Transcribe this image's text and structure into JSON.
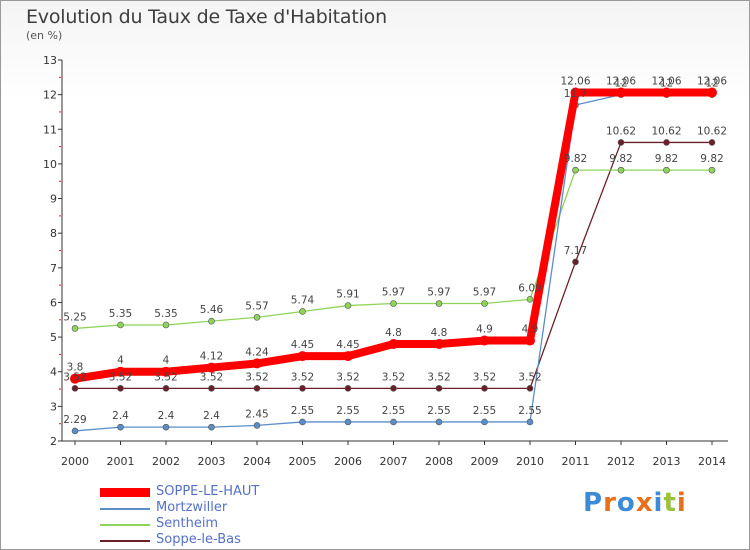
{
  "title": "Evolution du Taux de Taxe d'Habitation",
  "subtitle": "(en %)",
  "logo": {
    "text": "Proxiti",
    "colors": [
      "#3d8bd6",
      "#e8701a",
      "#3d8bd6",
      "#e8701a",
      "#3d8bd6",
      "#9ac23c",
      "#e8701a"
    ]
  },
  "chart_data": {
    "type": "line",
    "title": "Evolution du Taux de Taxe d'Habitation",
    "ylabel": "(en %)",
    "xlabel": "",
    "x": [
      "2000",
      "2001",
      "2002",
      "2003",
      "2004",
      "2005",
      "2006",
      "2007",
      "2008",
      "2009",
      "2010",
      "2011",
      "2012",
      "2013",
      "2014"
    ],
    "ylim": [
      2,
      13
    ],
    "yticks": [
      2,
      3,
      4,
      5,
      6,
      7,
      8,
      9,
      10,
      11,
      12,
      13
    ],
    "grid": false,
    "legend_position": "bottom-left",
    "series": [
      {
        "name": "SOPPE-LE-HAUT",
        "color": "#ff0000",
        "values": [
          3.8,
          4,
          4,
          4.12,
          4.24,
          4.45,
          4.45,
          4.8,
          4.8,
          4.9,
          4.9,
          12.06,
          12.06,
          12.06,
          12.06
        ],
        "labels": [
          "3.8",
          "4",
          "4",
          "4.12",
          "4.24",
          "4.45",
          "4.45",
          "4.8",
          "4.8",
          "4.9",
          "4.9",
          "12.06",
          "12.06",
          "12.06",
          "12.06"
        ]
      },
      {
        "name": "Mortzwiller",
        "color": "#5b8ec9",
        "values": [
          2.29,
          2.4,
          2.4,
          2.4,
          2.45,
          2.55,
          2.55,
          2.55,
          2.55,
          2.55,
          2.55,
          11.7,
          12,
          12,
          12
        ],
        "labels": [
          "2.29",
          "2.4",
          "2.4",
          "2.4",
          "2.45",
          "2.55",
          "2.55",
          "2.55",
          "2.55",
          "2.55",
          "2.55",
          "11.7",
          "12",
          "12",
          "12"
        ]
      },
      {
        "name": "Sentheim",
        "color": "#8ed45a",
        "values": [
          5.25,
          5.35,
          5.35,
          5.46,
          5.57,
          5.74,
          5.91,
          5.97,
          5.97,
          5.97,
          6.09,
          9.82,
          9.82,
          9.82,
          9.82
        ],
        "labels": [
          "5.25",
          "5.35",
          "5.35",
          "5.46",
          "5.57",
          "5.74",
          "5.91",
          "5.97",
          "5.97",
          "5.97",
          "6.09",
          "9.82",
          "9.82",
          "9.82",
          "9.82"
        ]
      },
      {
        "name": "Soppe-le-Bas",
        "color": "#6b1f28",
        "values": [
          3.52,
          3.52,
          3.52,
          3.52,
          3.52,
          3.52,
          3.52,
          3.52,
          3.52,
          3.52,
          3.52,
          7.17,
          10.62,
          10.62,
          10.62
        ],
        "labels": [
          "3.52",
          "3.52",
          "3.52",
          "3.52",
          "3.52",
          "3.52",
          "3.52",
          "3.52",
          "3.52",
          "3.52",
          "3.52",
          "7.17",
          "10.62",
          "10.62",
          "10.62"
        ]
      }
    ]
  }
}
